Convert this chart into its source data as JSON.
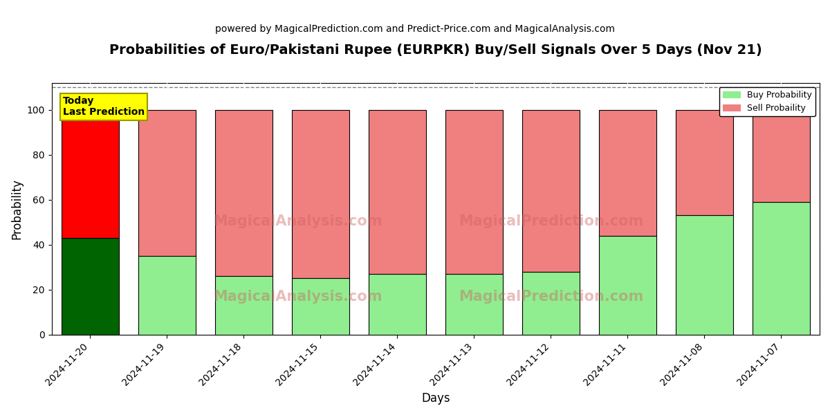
{
  "title": "Probabilities of Euro/Pakistani Rupee (EURPKR) Buy/Sell Signals Over 5 Days (Nov 21)",
  "subtitle": "powered by MagicalPrediction.com and Predict-Price.com and MagicalAnalysis.com",
  "xlabel": "Days",
  "ylabel": "Probability",
  "categories": [
    "2024-11-20",
    "2024-11-19",
    "2024-11-18",
    "2024-11-15",
    "2024-11-14",
    "2024-11-13",
    "2024-11-12",
    "2024-11-11",
    "2024-11-08",
    "2024-11-07"
  ],
  "buy_values": [
    43,
    35,
    26,
    25,
    27,
    27,
    28,
    44,
    53,
    59
  ],
  "sell_values": [
    57,
    65,
    74,
    75,
    73,
    73,
    72,
    56,
    47,
    41
  ],
  "today_buy_color": "#006400",
  "today_sell_color": "#ff0000",
  "buy_color": "#90EE90",
  "sell_color": "#F08080",
  "bar_edge_color": "#000000",
  "today_annotation_bg": "#ffff00",
  "today_annotation_text": "Today\nLast Prediction",
  "ylim": [
    0,
    112
  ],
  "yticks": [
    0,
    20,
    40,
    60,
    80,
    100
  ],
  "dashed_line_y": 110,
  "legend_buy_label": "Buy Probability",
  "legend_sell_label": "Sell Probaility",
  "title_fontsize": 14,
  "subtitle_fontsize": 10,
  "axis_label_fontsize": 12,
  "tick_fontsize": 10,
  "bg_color": "#ffffff",
  "fig_bg_color": "#ffffff"
}
